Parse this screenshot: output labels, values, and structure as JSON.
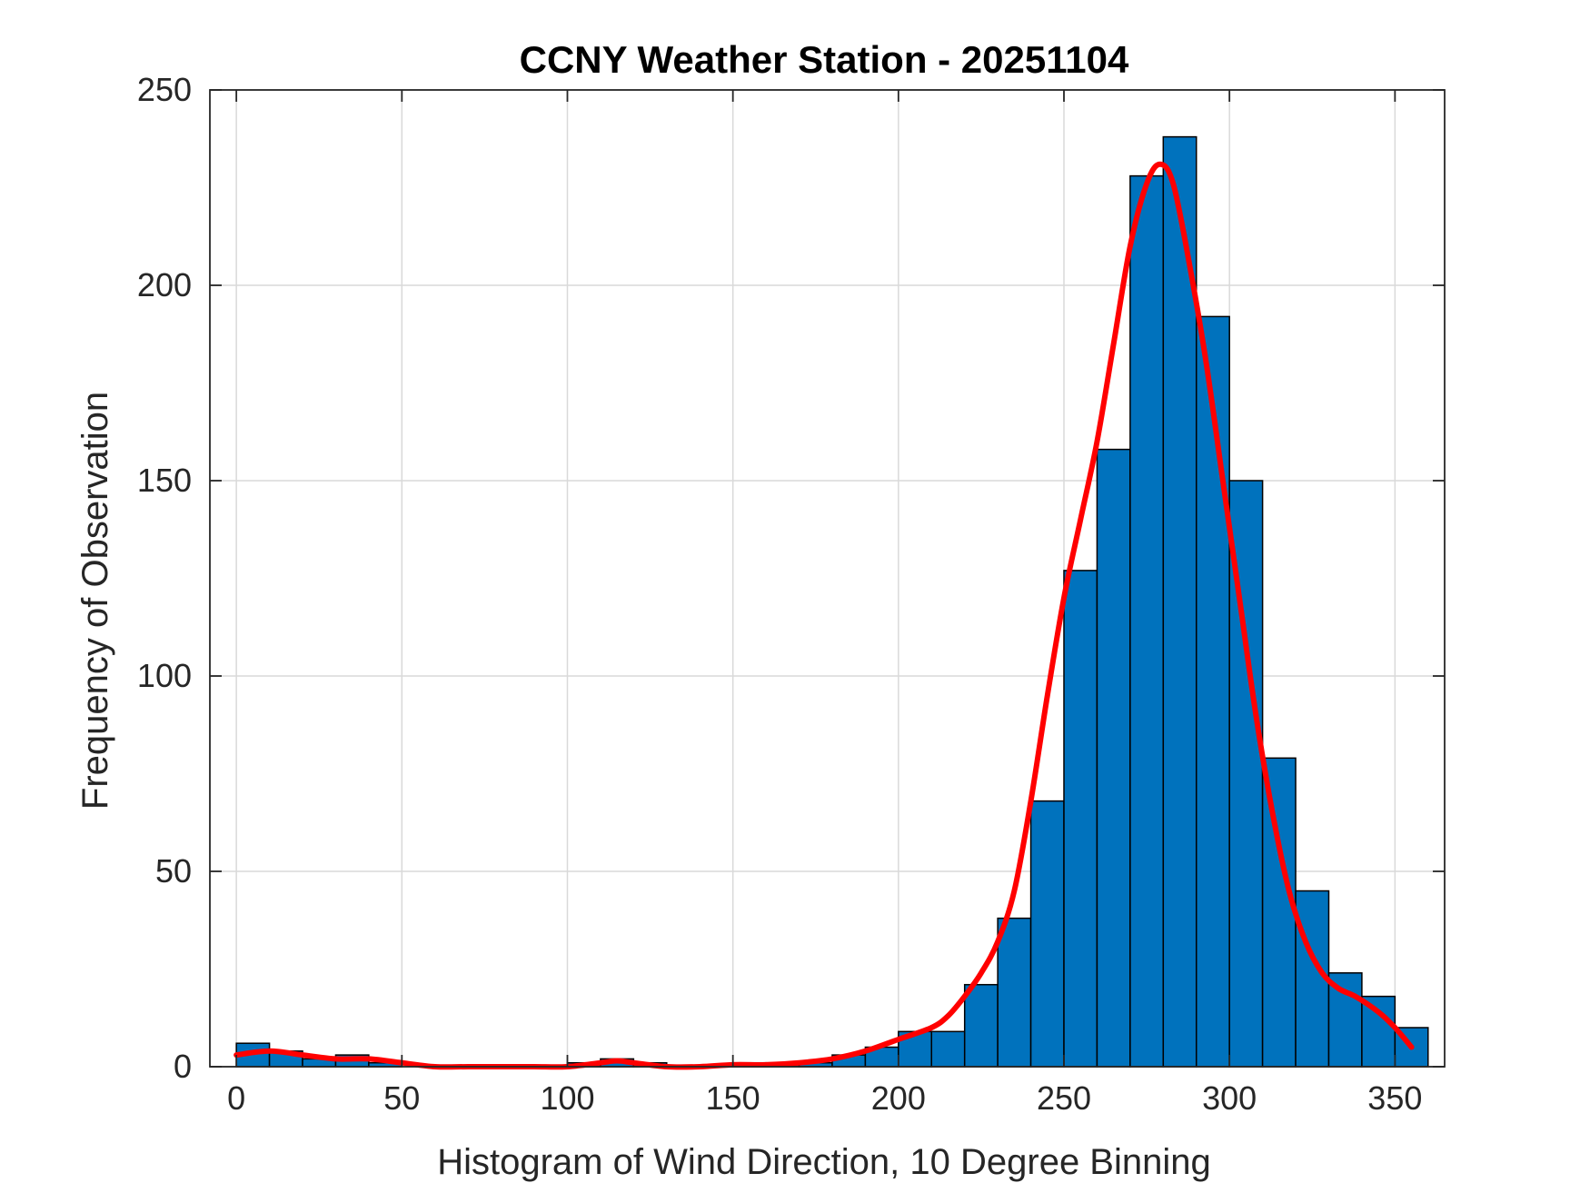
{
  "chart_data": {
    "type": "bar",
    "title": "CCNY Weather Station - 20251104",
    "xlabel": "Histogram of Wind Direction, 10 Degree Binning",
    "ylabel": "Frequency of Observation",
    "xlim": [
      -8,
      365
    ],
    "ylim": [
      0,
      250
    ],
    "xticks": [
      0,
      50,
      100,
      150,
      200,
      250,
      300,
      350
    ],
    "yticks": [
      0,
      50,
      100,
      150,
      200,
      250
    ],
    "grid": true,
    "bin_width": 10,
    "bins": [
      {
        "start": 0,
        "value": 6
      },
      {
        "start": 10,
        "value": 4
      },
      {
        "start": 20,
        "value": 2
      },
      {
        "start": 30,
        "value": 3
      },
      {
        "start": 40,
        "value": 1
      },
      {
        "start": 50,
        "value": 0
      },
      {
        "start": 60,
        "value": 0
      },
      {
        "start": 70,
        "value": 0
      },
      {
        "start": 80,
        "value": 0
      },
      {
        "start": 90,
        "value": 0
      },
      {
        "start": 100,
        "value": 1
      },
      {
        "start": 110,
        "value": 2
      },
      {
        "start": 120,
        "value": 1
      },
      {
        "start": 130,
        "value": 0
      },
      {
        "start": 140,
        "value": 0
      },
      {
        "start": 150,
        "value": 1
      },
      {
        "start": 160,
        "value": 1
      },
      {
        "start": 170,
        "value": 1
      },
      {
        "start": 180,
        "value": 3
      },
      {
        "start": 190,
        "value": 5
      },
      {
        "start": 200,
        "value": 9
      },
      {
        "start": 210,
        "value": 9
      },
      {
        "start": 220,
        "value": 21
      },
      {
        "start": 230,
        "value": 38
      },
      {
        "start": 240,
        "value": 68
      },
      {
        "start": 250,
        "value": 127
      },
      {
        "start": 260,
        "value": 158
      },
      {
        "start": 270,
        "value": 228
      },
      {
        "start": 280,
        "value": 238
      },
      {
        "start": 290,
        "value": 192
      },
      {
        "start": 300,
        "value": 150
      },
      {
        "start": 310,
        "value": 79
      },
      {
        "start": 320,
        "value": 45
      },
      {
        "start": 330,
        "value": 24
      },
      {
        "start": 340,
        "value": 18
      },
      {
        "start": 350,
        "value": 10
      }
    ],
    "fit_curve": {
      "points": [
        [
          0,
          3
        ],
        [
          10,
          4
        ],
        [
          20,
          3
        ],
        [
          30,
          2
        ],
        [
          40,
          2
        ],
        [
          50,
          1
        ],
        [
          60,
          0
        ],
        [
          70,
          0
        ],
        [
          80,
          0
        ],
        [
          90,
          0
        ],
        [
          100,
          0
        ],
        [
          110,
          1
        ],
        [
          115,
          1.5
        ],
        [
          120,
          1
        ],
        [
          130,
          0
        ],
        [
          140,
          0
        ],
        [
          150,
          0.5
        ],
        [
          160,
          0.5
        ],
        [
          170,
          1
        ],
        [
          180,
          2
        ],
        [
          190,
          4
        ],
        [
          200,
          7
        ],
        [
          210,
          10
        ],
        [
          215,
          13
        ],
        [
          220,
          18
        ],
        [
          225,
          24
        ],
        [
          230,
          32
        ],
        [
          235,
          45
        ],
        [
          240,
          68
        ],
        [
          245,
          95
        ],
        [
          250,
          120
        ],
        [
          255,
          140
        ],
        [
          260,
          160
        ],
        [
          265,
          185
        ],
        [
          270,
          210
        ],
        [
          275,
          226
        ],
        [
          279,
          231
        ],
        [
          283,
          226
        ],
        [
          288,
          205
        ],
        [
          293,
          180
        ],
        [
          298,
          150
        ],
        [
          303,
          120
        ],
        [
          308,
          90
        ],
        [
          313,
          65
        ],
        [
          318,
          45
        ],
        [
          323,
          32
        ],
        [
          328,
          24
        ],
        [
          333,
          20
        ],
        [
          338,
          18
        ],
        [
          345,
          14
        ],
        [
          350,
          10
        ],
        [
          355,
          5
        ]
      ]
    },
    "colors": {
      "bar_fill": "#0072BD",
      "fit_line": "#FF0000"
    }
  }
}
